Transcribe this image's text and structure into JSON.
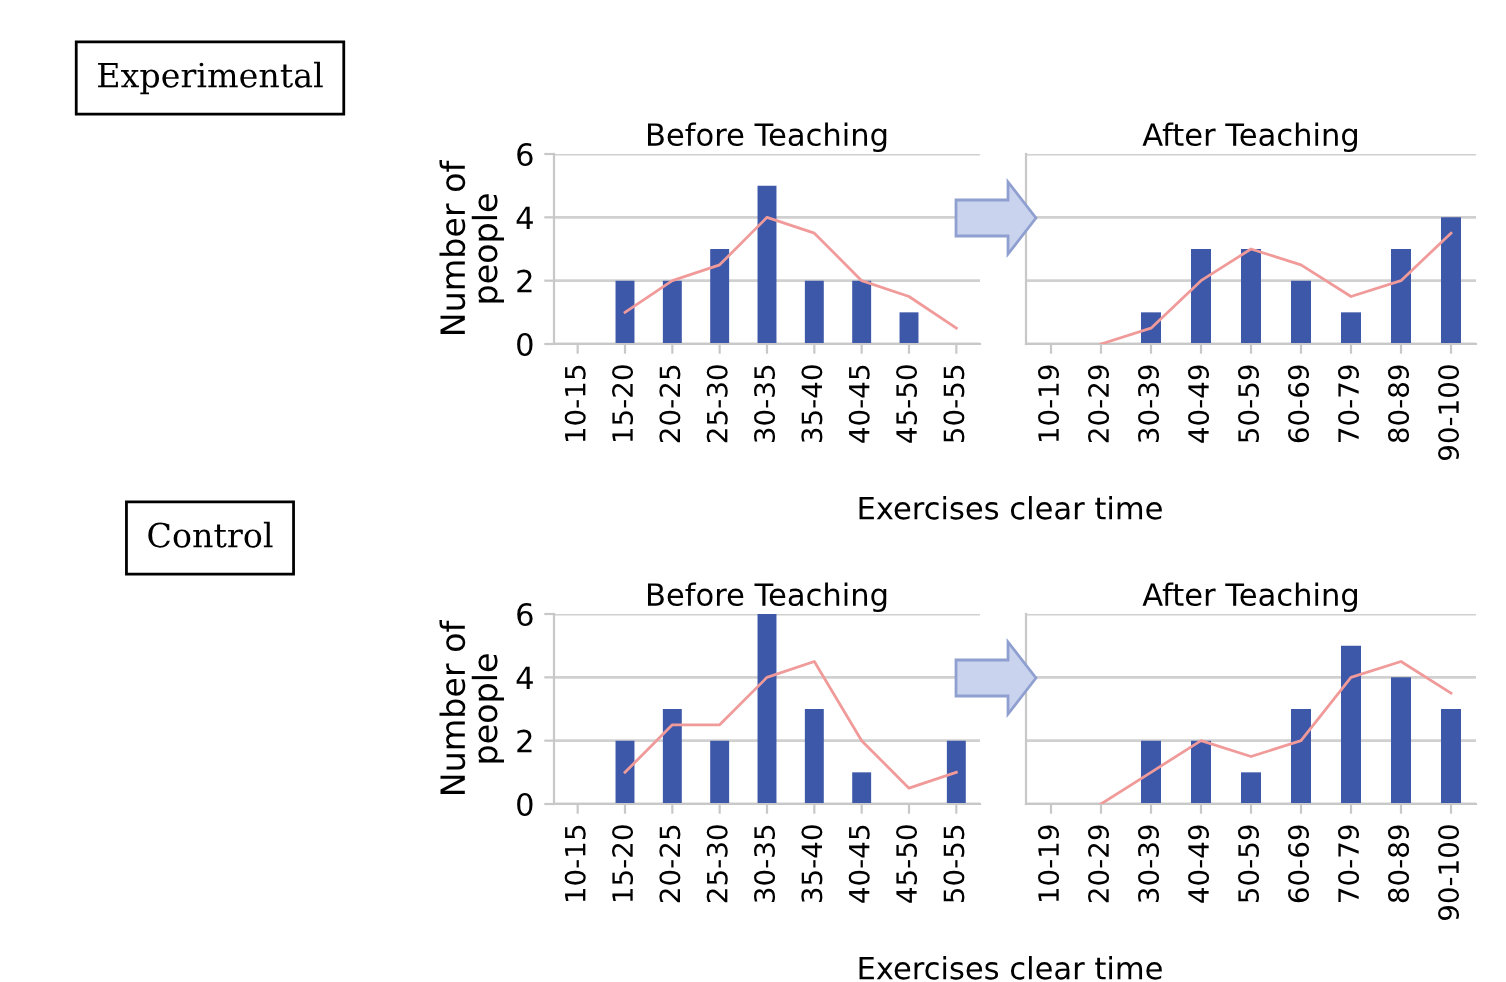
{
  "chart_data": [
    {
      "type": "bar",
      "title": "Before Teaching",
      "ylabel": "Number of\npeople",
      "xlabel": "Exercises clear time",
      "annotations": [
        "Experimental"
      ],
      "categories": [
        "10-15",
        "15-20",
        "20-25",
        "25-30",
        "30-35",
        "35-40",
        "40-45",
        "45-50",
        "50-55"
      ],
      "series": [
        {
          "color": "#3d58a8",
          "values": [
            0,
            2,
            2,
            3,
            5,
            2,
            2,
            1,
            0
          ]
        },
        {
          "type": "line",
          "color": "#f09a9a",
          "values": [
            null,
            1,
            2,
            2.5,
            4,
            3.5,
            2,
            1.5,
            0.5
          ]
        }
      ],
      "ylim": [
        0,
        6
      ],
      "yticks": [
        0,
        2,
        4,
        6
      ],
      "grid": "y",
      "legend": false,
      "marker": "none",
      "line_style": "solid"
    },
    {
      "type": "bar",
      "title": "After Teaching",
      "categories": [
        "10-19",
        "20-29",
        "30-39",
        "40-49",
        "50-59",
        "60-69",
        "70-79",
        "80-89",
        "90-100"
      ],
      "series": [
        {
          "color": "#3d58a8",
          "values": [
            0,
            0,
            1,
            3,
            3,
            2,
            1,
            3,
            4
          ]
        },
        {
          "type": "line",
          "color": "#f09a9a",
          "values": [
            null,
            0,
            0.5,
            2,
            3,
            2.5,
            1.5,
            2,
            3.5
          ]
        }
      ],
      "ylim": [
        0,
        6
      ],
      "yticks": [
        0,
        2,
        4,
        6
      ],
      "tick_labels": "x",
      "grid": "y",
      "legend": false,
      "marker": "none",
      "line_style": "solid"
    },
    {
      "type": "bar",
      "title": "Before Teaching",
      "ylabel": "Number of\npeople",
      "xlabel": "Exercises clear time",
      "annotations": [
        "Control"
      ],
      "categories": [
        "10-15",
        "15-20",
        "20-25",
        "25-30",
        "30-35",
        "35-40",
        "40-45",
        "45-50",
        "50-55"
      ],
      "series": [
        {
          "color": "#3d58a8",
          "values": [
            0,
            2,
            3,
            2,
            6,
            3,
            1,
            0,
            2
          ]
        },
        {
          "type": "line",
          "color": "#f09a9a",
          "values": [
            null,
            1,
            2.5,
            2.5,
            4,
            4.5,
            2,
            0.5,
            1
          ]
        }
      ],
      "ylim": [
        0,
        6
      ],
      "yticks": [
        0,
        2,
        4,
        6
      ],
      "grid": "y",
      "legend": false,
      "marker": "none",
      "line_style": "solid"
    },
    {
      "type": "bar",
      "title": "After Teaching",
      "categories": [
        "10-19",
        "20-29",
        "30-39",
        "40-49",
        "50-59",
        "60-69",
        "70-79",
        "80-89",
        "90-100"
      ],
      "series": [
        {
          "color": "#3d58a8",
          "values": [
            0,
            0,
            2,
            2,
            1,
            3,
            5,
            4,
            3
          ]
        },
        {
          "type": "line",
          "color": "#f09a9a",
          "values": [
            null,
            0,
            1,
            2,
            1.5,
            2,
            4,
            4.5,
            3.5
          ]
        }
      ],
      "ylim": [
        0,
        6
      ],
      "yticks": [
        0,
        2,
        4,
        6
      ],
      "tick_labels": "x",
      "grid": "y",
      "legend": false,
      "marker": "none",
      "line_style": "solid"
    }
  ]
}
